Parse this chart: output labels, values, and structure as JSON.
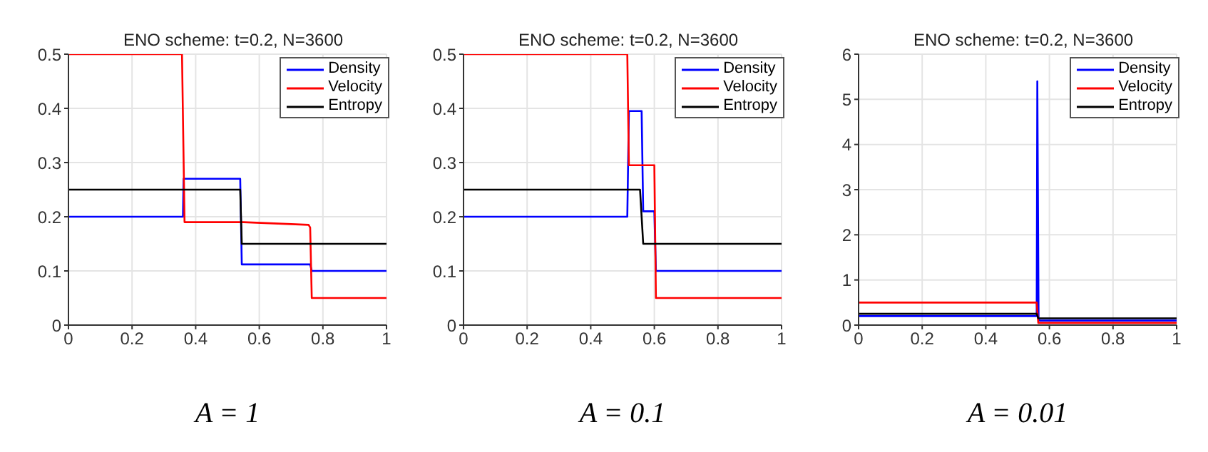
{
  "chart_data": [
    {
      "type": "line",
      "title": "ENO scheme: t=0.2, N=3600",
      "xlabel": "A = 1",
      "xlim": [
        0,
        1
      ],
      "xticks": [
        0,
        0.2,
        0.4,
        0.6,
        0.8,
        1
      ],
      "ylim": [
        0,
        0.5
      ],
      "yticks": [
        0,
        0.1,
        0.2,
        0.3,
        0.4,
        0.5
      ],
      "grid": true,
      "legend": "top right",
      "series": [
        {
          "name": "Density",
          "color": "#0000ff",
          "x": [
            0,
            0.36,
            0.362,
            0.54,
            0.545,
            0.76,
            0.765,
            1
          ],
          "values": [
            0.2,
            0.2,
            0.27,
            0.27,
            0.112,
            0.112,
            0.1,
            0.1
          ]
        },
        {
          "name": "Velocity",
          "color": "#ff0000",
          "x": [
            0,
            0.357,
            0.365,
            0.55,
            0.755,
            0.76,
            0.765,
            1
          ],
          "values": [
            0.5,
            0.5,
            0.19,
            0.19,
            0.185,
            0.18,
            0.05,
            0.05
          ]
        },
        {
          "name": "Entropy",
          "color": "#000000",
          "x": [
            0,
            0.54,
            0.545,
            1
          ],
          "values": [
            0.25,
            0.25,
            0.15,
            0.15
          ]
        }
      ]
    },
    {
      "type": "line",
      "title": "ENO scheme: t=0.2, N=3600",
      "xlabel": "A = 0.1",
      "xlim": [
        0,
        1
      ],
      "xticks": [
        0,
        0.2,
        0.4,
        0.6,
        0.8,
        1
      ],
      "ylim": [
        0,
        0.5
      ],
      "yticks": [
        0,
        0.1,
        0.2,
        0.3,
        0.4,
        0.5
      ],
      "grid": true,
      "legend": "top right",
      "series": [
        {
          "name": "Density",
          "color": "#0000ff",
          "x": [
            0,
            0.515,
            0.52,
            0.56,
            0.565,
            0.6,
            0.605,
            1
          ],
          "values": [
            0.2,
            0.2,
            0.395,
            0.395,
            0.21,
            0.21,
            0.1,
            0.1
          ]
        },
        {
          "name": "Velocity",
          "color": "#ff0000",
          "x": [
            0,
            0.515,
            0.52,
            0.6,
            0.605,
            1
          ],
          "values": [
            0.5,
            0.5,
            0.295,
            0.295,
            0.05,
            0.05
          ]
        },
        {
          "name": "Entropy",
          "color": "#000000",
          "x": [
            0,
            0.555,
            0.565,
            1
          ],
          "values": [
            0.25,
            0.25,
            0.15,
            0.15
          ]
        }
      ]
    },
    {
      "type": "line",
      "title": "ENO scheme: t=0.2, N=3600",
      "xlabel": "A = 0.01",
      "xlim": [
        0,
        1
      ],
      "xticks": [
        0,
        0.2,
        0.4,
        0.6,
        0.8,
        1
      ],
      "ylim": [
        0,
        6
      ],
      "yticks": [
        0,
        1,
        2,
        3,
        4,
        5,
        6
      ],
      "grid": true,
      "legend": "top right",
      "series": [
        {
          "name": "Density",
          "color": "#0000ff",
          "x": [
            0,
            0.56,
            0.562,
            0.566,
            0.57,
            1
          ],
          "values": [
            0.2,
            0.2,
            5.4,
            0.12,
            0.1,
            0.1
          ]
        },
        {
          "name": "Velocity",
          "color": "#ff0000",
          "x": [
            0,
            0.56,
            0.565,
            1
          ],
          "values": [
            0.5,
            0.5,
            0.05,
            0.05
          ]
        },
        {
          "name": "Entropy",
          "color": "#000000",
          "x": [
            0,
            0.56,
            0.565,
            1
          ],
          "values": [
            0.25,
            0.25,
            0.15,
            0.15
          ]
        }
      ]
    }
  ]
}
